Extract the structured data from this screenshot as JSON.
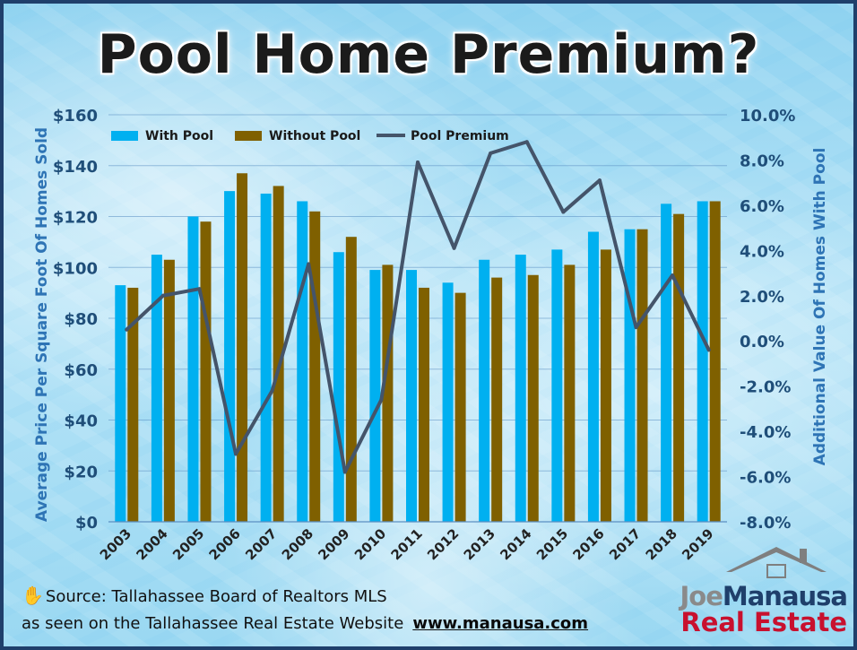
{
  "title": "Pool Home Premium?",
  "source_text": "Source: Tallahassee Board of Realtors MLS",
  "seen_text": "as seen on the Tallahassee Real Estate Website",
  "website": "www.manausa.com",
  "logo": {
    "first": "Joe",
    "second": "Manausa",
    "third": "Real Estate"
  },
  "colors": {
    "with_pool": "#00b0f0",
    "without_pool": "#7f6000",
    "pool_premium": "#44546a",
    "axis_text": "#1f4e79",
    "axis_title": "#2e74b5"
  },
  "chart_data": {
    "type": "bar",
    "categories": [
      "2003",
      "2004",
      "2005",
      "2006",
      "2007",
      "2008",
      "2009",
      "2010",
      "2011",
      "2012",
      "2013",
      "2014",
      "2015",
      "2016",
      "2017",
      "2018",
      "2019"
    ],
    "series": [
      {
        "name": "With Pool",
        "type": "bar",
        "axis": "left",
        "values": [
          93,
          105,
          120,
          130,
          129,
          126,
          106,
          99,
          99,
          94,
          103,
          105,
          107,
          114,
          115,
          125,
          126
        ]
      },
      {
        "name": "Without Pool",
        "type": "bar",
        "axis": "left",
        "values": [
          92,
          103,
          118,
          137,
          132,
          122,
          112,
          101,
          92,
          90,
          96,
          97,
          101,
          107,
          115,
          121,
          126
        ]
      },
      {
        "name": "Pool Premium",
        "type": "line",
        "axis": "right",
        "values": [
          0.5,
          2.0,
          2.3,
          -5.0,
          -2.2,
          3.4,
          -5.8,
          -2.6,
          7.9,
          4.1,
          8.3,
          8.8,
          5.7,
          7.1,
          0.6,
          2.9,
          -0.4
        ]
      }
    ],
    "ylabel": "Average Price Per Square Foot Of Homes Sold",
    "y2label": "Additional Value Of Homes With Pool",
    "ylim": [
      0,
      160
    ],
    "y2lim": [
      -8,
      10
    ],
    "yticks": [
      "$0",
      "$20",
      "$40",
      "$60",
      "$80",
      "$100",
      "$120",
      "$140",
      "$160"
    ],
    "y2ticks": [
      "-8.0%",
      "-6.0%",
      "-4.0%",
      "-2.0%",
      "0.0%",
      "2.0%",
      "4.0%",
      "6.0%",
      "8.0%",
      "10.0%"
    ],
    "grid": true,
    "legend": "top-left"
  }
}
